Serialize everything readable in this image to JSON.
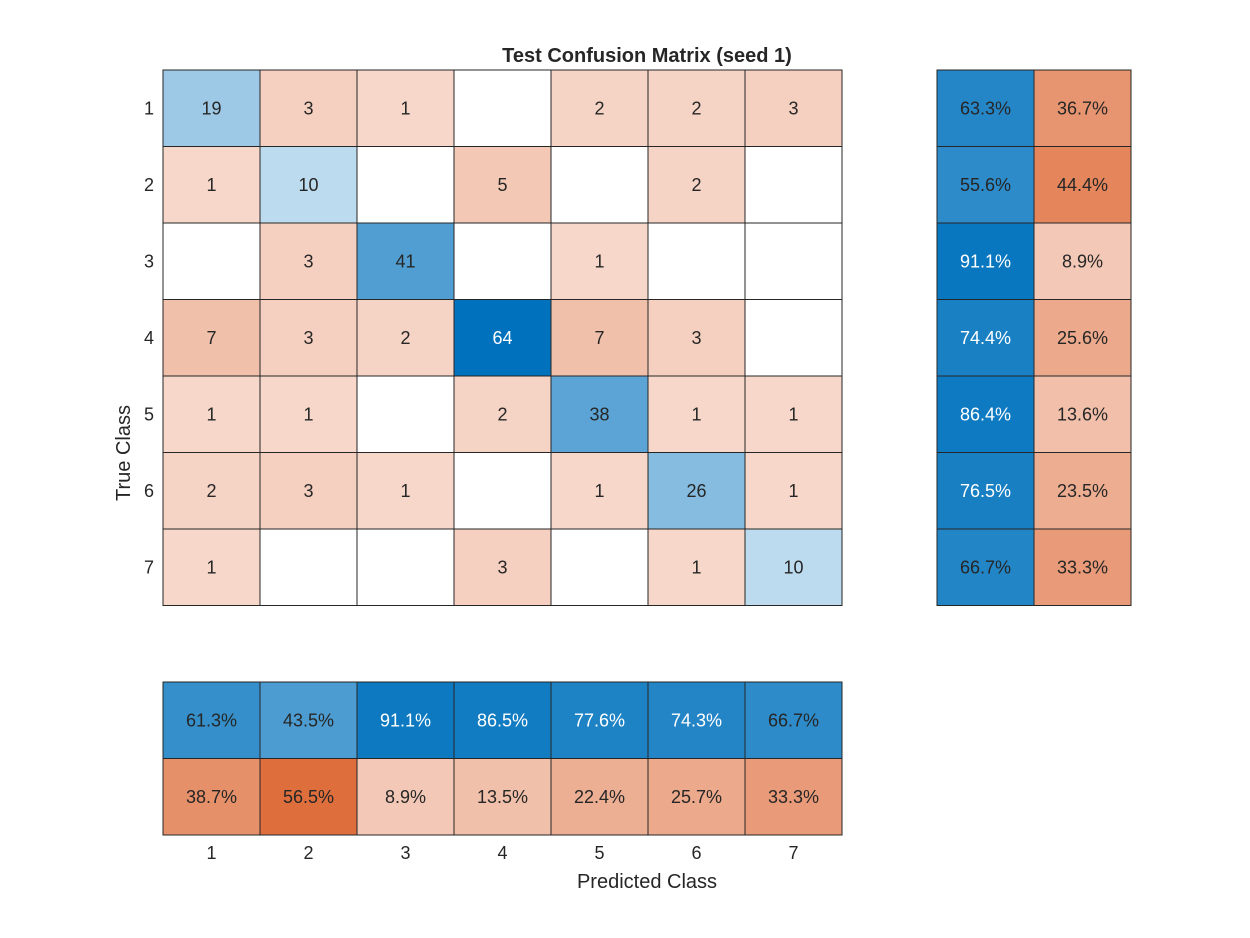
{
  "chart_data": {
    "type": "heatmap",
    "title": "Test Confusion Matrix (seed 1)",
    "xlabel": "Predicted Class",
    "ylabel": "True Class",
    "classes": [
      "1",
      "2",
      "3",
      "4",
      "5",
      "6",
      "7"
    ],
    "matrix": [
      [
        19,
        3,
        1,
        0,
        2,
        2,
        3
      ],
      [
        1,
        10,
        0,
        5,
        0,
        2,
        0
      ],
      [
        0,
        3,
        41,
        0,
        1,
        0,
        0
      ],
      [
        7,
        3,
        2,
        64,
        7,
        3,
        0
      ],
      [
        1,
        1,
        0,
        2,
        38,
        1,
        1
      ],
      [
        2,
        3,
        1,
        0,
        1,
        26,
        1
      ],
      [
        1,
        0,
        0,
        3,
        0,
        1,
        10
      ]
    ],
    "row_summary": {
      "correct": [
        "63.3%",
        "55.6%",
        "91.1%",
        "74.4%",
        "86.4%",
        "76.5%",
        "66.7%"
      ],
      "incorrect": [
        "36.7%",
        "44.4%",
        "8.9%",
        "25.6%",
        "13.6%",
        "23.5%",
        "33.3%"
      ]
    },
    "column_summary": {
      "correct": [
        "61.3%",
        "43.5%",
        "91.1%",
        "86.5%",
        "77.6%",
        "74.3%",
        "66.7%"
      ],
      "incorrect": [
        "38.7%",
        "56.5%",
        "8.9%",
        "13.5%",
        "22.4%",
        "25.7%",
        "33.3%"
      ]
    },
    "colors": {
      "correct": "#0072bd",
      "incorrect": "#d95319",
      "empty": "#ffffff",
      "border": "#262626",
      "text_dark": "#262626",
      "text_light": "#ffffff"
    }
  }
}
